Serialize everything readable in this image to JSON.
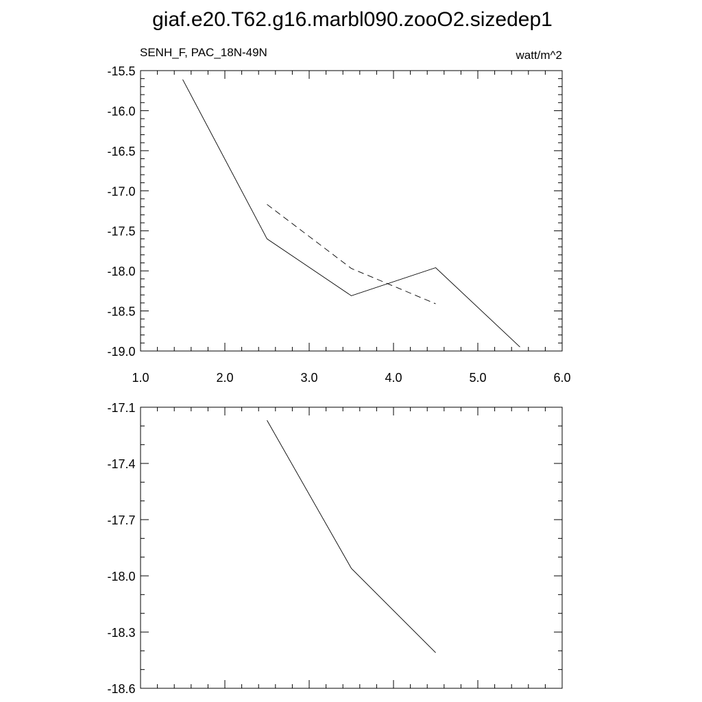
{
  "title": "giaf.e20.T62.g16.marbl090.zooO2.sizedep1",
  "chart_data": [
    {
      "type": "line",
      "left_label": "SENH_F, PAC_18N-49N",
      "right_label": "watt/m^2",
      "xlim": [
        1.0,
        6.0
      ],
      "ylim": [
        -19.0,
        -15.5
      ],
      "x_ticks": [
        "1.0",
        "2.0",
        "3.0",
        "4.0",
        "5.0",
        "6.0"
      ],
      "y_ticks": [
        "-15.5",
        "-16.0",
        "-16.5",
        "-17.0",
        "-17.5",
        "-18.0",
        "-18.5",
        "-19.0"
      ],
      "grid": false,
      "series": [
        {
          "style": "solid",
          "x": [
            1.5,
            2.5,
            3.5,
            4.5,
            5.5
          ],
          "y": [
            -15.61,
            -17.6,
            -18.31,
            -17.96,
            -18.95
          ]
        },
        {
          "style": "dashed",
          "x": [
            2.5,
            3.5,
            4.5
          ],
          "y": [
            -17.17,
            -17.97,
            -18.41
          ]
        }
      ]
    },
    {
      "type": "line",
      "xlim": [
        1.0,
        6.0
      ],
      "ylim": [
        -18.6,
        -17.1
      ],
      "y_ticks": [
        "-17.1",
        "-17.4",
        "-17.7",
        "-18.0",
        "-18.3",
        "-18.6"
      ],
      "grid": false,
      "series": [
        {
          "style": "solid",
          "x": [
            2.5,
            3.5,
            4.5
          ],
          "y": [
            -17.17,
            -17.96,
            -18.41
          ]
        }
      ]
    }
  ]
}
